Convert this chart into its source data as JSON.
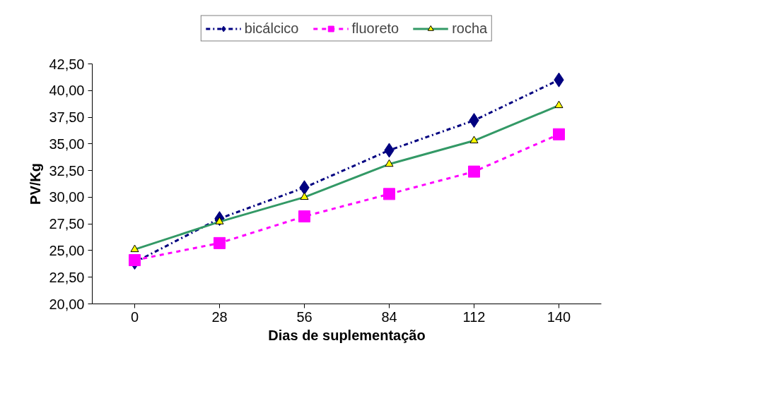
{
  "chart_data": {
    "type": "line",
    "xlabel": "Dias de suplementação",
    "ylabel": "PV/Kg",
    "categories": [
      "0",
      "28",
      "56",
      "84",
      "112",
      "140"
    ],
    "ylim": [
      20,
      42.5
    ],
    "yticks": [
      {
        "value": 20,
        "label": "20,00"
      },
      {
        "value": 22.5,
        "label": "22,50"
      },
      {
        "value": 25,
        "label": "25,00"
      },
      {
        "value": 27.5,
        "label": "27,50"
      },
      {
        "value": 30,
        "label": "30,00"
      },
      {
        "value": 32.5,
        "label": "32,50"
      },
      {
        "value": 35,
        "label": "35,00"
      },
      {
        "value": 37.5,
        "label": "37,50"
      },
      {
        "value": 40,
        "label": "40,00"
      },
      {
        "value": 42.5,
        "label": "42,50"
      }
    ],
    "grid": false,
    "legend": "top",
    "series": [
      {
        "name": "bicálcico",
        "color": "#000080",
        "marker": "diamond",
        "line_style": "dashdot",
        "values": [
          23.9,
          28.0,
          30.9,
          34.4,
          37.2,
          41.0
        ]
      },
      {
        "name": "fluoreto",
        "color": "#ff00ff",
        "marker": "square",
        "line_style": "dashed",
        "values": [
          24.1,
          25.7,
          28.2,
          30.3,
          32.4,
          35.9
        ]
      },
      {
        "name": "rocha",
        "color": "#339966",
        "marker": "triangle",
        "line_style": "solid",
        "values": [
          25.1,
          27.7,
          30.0,
          33.1,
          35.3,
          38.6
        ]
      }
    ]
  }
}
